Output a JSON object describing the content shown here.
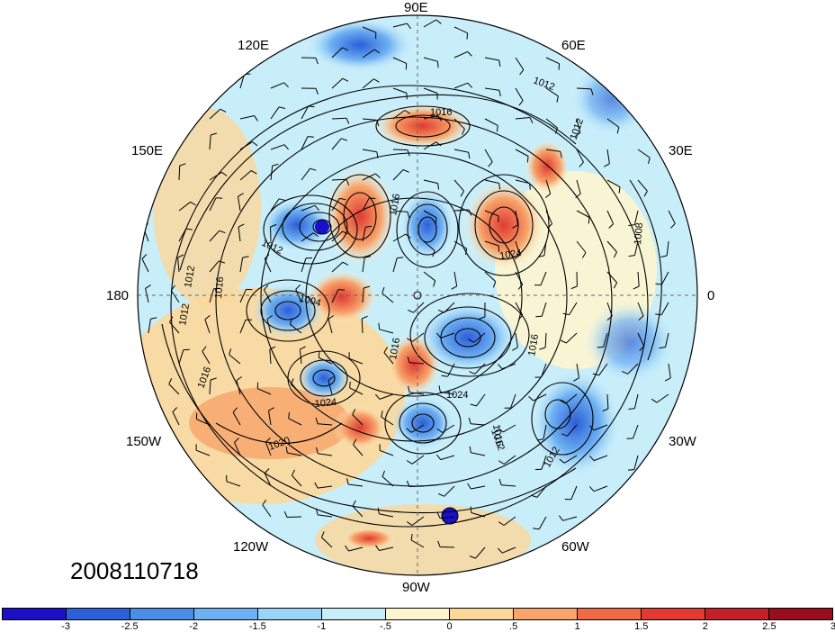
{
  "map": {
    "projection": "north-polar-stereographic",
    "longitude_labels": {
      "lon_90e": "90E",
      "lon_60e": "60E",
      "lon_120e": "120E",
      "lon_150e": "150E",
      "lon_30e": "30E",
      "lon_180": "180",
      "lon_0": "0",
      "lon_150w": "150W",
      "lon_30w": "30W",
      "lon_120w": "120W",
      "lon_60w": "60W",
      "lon_90w": "90W"
    },
    "isobar_labels": [
      "1012",
      "1016",
      "1012",
      "1012",
      "1016",
      "1012",
      "1004",
      "1016",
      "1024",
      "1020",
      "1016",
      "1012",
      "1008",
      "1024",
      "1016",
      "1012",
      "1016",
      "1024",
      "1016",
      "1012"
    ],
    "positive_color": "#e0523c",
    "negative_color": "#3d7fe0"
  },
  "timestamp": "2008110718",
  "colorbar": {
    "colors": [
      "#1a10c8",
      "#2c5fd8",
      "#4a8ee8",
      "#6eb1f2",
      "#9ad4f8",
      "#c8eefa",
      "#fdf5cf",
      "#fcd79a",
      "#f8a46a",
      "#ef6b48",
      "#e03a32",
      "#c4202a",
      "#9a0d1e"
    ],
    "tick_labels": [
      "-3",
      "-2.5",
      "-2",
      "-1.5",
      "-1",
      "-.5",
      "0",
      ".5",
      "1",
      "1.5",
      "2",
      "2.5",
      "3"
    ]
  }
}
